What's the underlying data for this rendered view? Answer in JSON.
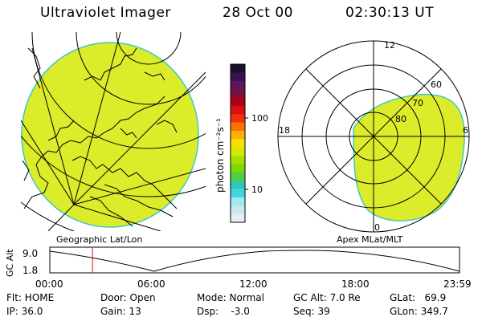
{
  "header": {
    "instrument": "Ultraviolet Imager",
    "date": "28 Oct 00",
    "time": "02:30:13 UT"
  },
  "left_panel": {
    "caption": "Geographic Lat/Lon"
  },
  "right_panel": {
    "caption": "Apex MLat/MLT",
    "mlt_labels": [
      "12",
      "18",
      "6",
      "0"
    ],
    "mlat_labels": [
      "60",
      "70",
      "80"
    ]
  },
  "colorbar": {
    "unit_label": "photon cm⁻²s⁻¹",
    "tick_labels": [
      "100",
      "10"
    ],
    "colors": [
      "#1a1030",
      "#3a1250",
      "#5c1560",
      "#7a1040",
      "#b00018",
      "#d81010",
      "#f03010",
      "#ff7000",
      "#ffb000",
      "#f8e000",
      "#d4ea00",
      "#a8e000",
      "#80d800",
      "#50d040",
      "#30c8b0",
      "#40d8e0",
      "#9ee8f0",
      "#c8e8f0",
      "#e8eef0"
    ]
  },
  "timeline": {
    "ylabel": "GC Alt",
    "y_ticks": [
      "9.0",
      "1.8"
    ],
    "x_ticks": [
      "00:00",
      "06:00",
      "12:00",
      "18:00",
      "23:59"
    ],
    "current_time_fraction": 0.1042,
    "line_color": "#ff0000"
  },
  "info": {
    "flt": "Flt: HOME",
    "ip": "IP: 36.0",
    "door": "Door: Open",
    "gain": "Gain: 13",
    "mode": "Mode: Normal",
    "dsp": "Dsp:    -3.0",
    "gc_alt": "GC Alt: 7.0 Re",
    "seq": "Seq: 39",
    "glat": "GLat:   69.9",
    "glon": "GLon: 349.7"
  },
  "image_color": "#dcec2a"
}
